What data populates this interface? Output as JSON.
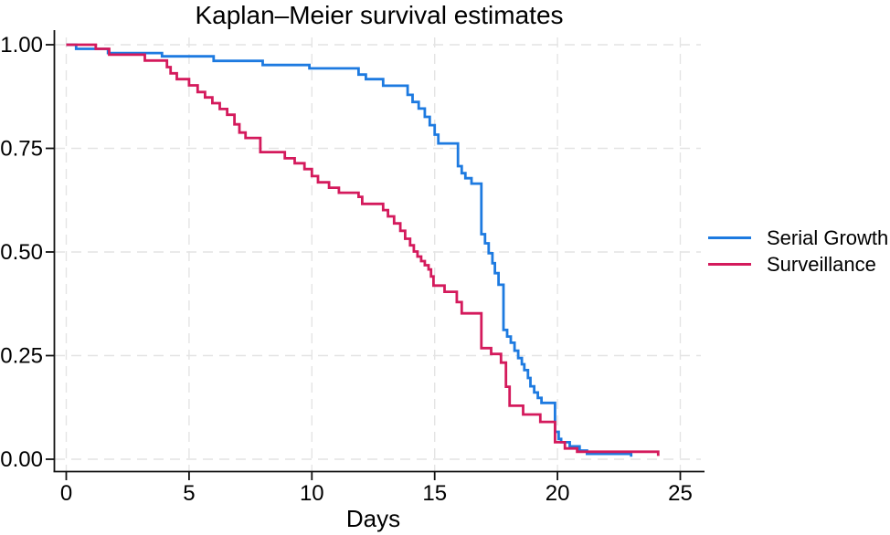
{
  "page": {
    "background": "#ffffff"
  },
  "chart_data": {
    "type": "line",
    "step": true,
    "title": "Kaplan–Meier survival estimates",
    "xlabel": "Days",
    "ylabel": "",
    "xlim": [
      0,
      25
    ],
    "ylim": [
      0,
      1
    ],
    "xticks": [
      0,
      5,
      10,
      15,
      20,
      25
    ],
    "yticks": [
      0,
      0.25,
      0.5,
      0.75,
      1
    ],
    "ytick_labels": [
      "0.00",
      "0.25",
      "0.50",
      "0.75",
      "1.00"
    ],
    "grid": "both-dashed",
    "gridline_color": "#e4e4e4",
    "axis_color": "#111111",
    "legend_position": "right-outside-middle",
    "series": [
      {
        "name": "Serial Growth",
        "color": "#1d7ae0",
        "points": [
          [
            0,
            1.0
          ],
          [
            0.4,
            0.99
          ],
          [
            1.7,
            0.98
          ],
          [
            3.9,
            0.972
          ],
          [
            6.0,
            0.961
          ],
          [
            8.0,
            0.951
          ],
          [
            9.9,
            0.943
          ],
          [
            11.9,
            0.928
          ],
          [
            12.2,
            0.917
          ],
          [
            12.9,
            0.901
          ],
          [
            13.9,
            0.879
          ],
          [
            14.1,
            0.862
          ],
          [
            14.35,
            0.846
          ],
          [
            14.6,
            0.826
          ],
          [
            14.8,
            0.806
          ],
          [
            15.0,
            0.783
          ],
          [
            15.15,
            0.762
          ],
          [
            15.95,
            0.707
          ],
          [
            16.1,
            0.69
          ],
          [
            16.25,
            0.678
          ],
          [
            16.5,
            0.665
          ],
          [
            16.9,
            0.543
          ],
          [
            17.05,
            0.521
          ],
          [
            17.2,
            0.497
          ],
          [
            17.35,
            0.473
          ],
          [
            17.45,
            0.449
          ],
          [
            17.6,
            0.421
          ],
          [
            17.8,
            0.312
          ],
          [
            17.95,
            0.296
          ],
          [
            18.1,
            0.281
          ],
          [
            18.25,
            0.262
          ],
          [
            18.4,
            0.244
          ],
          [
            18.55,
            0.229
          ],
          [
            18.65,
            0.215
          ],
          [
            18.8,
            0.196
          ],
          [
            18.9,
            0.176
          ],
          [
            19.05,
            0.161
          ],
          [
            19.2,
            0.148
          ],
          [
            19.35,
            0.136
          ],
          [
            19.9,
            0.066
          ],
          [
            20.05,
            0.049
          ],
          [
            20.15,
            0.041
          ],
          [
            20.5,
            0.031
          ],
          [
            20.9,
            0.021
          ],
          [
            21.2,
            0.013
          ],
          [
            23.0,
            0.006
          ]
        ]
      },
      {
        "name": "Surveillance",
        "color": "#d41a5c",
        "points": [
          [
            0,
            1.0
          ],
          [
            1.2,
            0.99
          ],
          [
            1.75,
            0.976
          ],
          [
            3.2,
            0.962
          ],
          [
            4.1,
            0.946
          ],
          [
            4.25,
            0.931
          ],
          [
            4.5,
            0.917
          ],
          [
            5.0,
            0.902
          ],
          [
            5.35,
            0.886
          ],
          [
            5.65,
            0.873
          ],
          [
            5.95,
            0.859
          ],
          [
            6.25,
            0.845
          ],
          [
            6.55,
            0.831
          ],
          [
            6.85,
            0.808
          ],
          [
            7.05,
            0.788
          ],
          [
            7.3,
            0.775
          ],
          [
            7.9,
            0.741
          ],
          [
            8.9,
            0.726
          ],
          [
            9.3,
            0.714
          ],
          [
            9.7,
            0.7
          ],
          [
            10.0,
            0.683
          ],
          [
            10.25,
            0.668
          ],
          [
            10.7,
            0.655
          ],
          [
            11.1,
            0.643
          ],
          [
            11.9,
            0.633
          ],
          [
            12.05,
            0.616
          ],
          [
            12.9,
            0.601
          ],
          [
            13.1,
            0.586
          ],
          [
            13.35,
            0.569
          ],
          [
            13.6,
            0.551
          ],
          [
            13.8,
            0.532
          ],
          [
            14.0,
            0.516
          ],
          [
            14.15,
            0.501
          ],
          [
            14.3,
            0.489
          ],
          [
            14.45,
            0.478
          ],
          [
            14.6,
            0.468
          ],
          [
            14.75,
            0.458
          ],
          [
            14.85,
            0.441
          ],
          [
            14.95,
            0.419
          ],
          [
            15.4,
            0.404
          ],
          [
            15.9,
            0.379
          ],
          [
            16.1,
            0.352
          ],
          [
            16.9,
            0.268
          ],
          [
            17.3,
            0.254
          ],
          [
            17.7,
            0.233
          ],
          [
            17.9,
            0.175
          ],
          [
            18.05,
            0.129
          ],
          [
            18.6,
            0.108
          ],
          [
            19.3,
            0.09
          ],
          [
            19.9,
            0.041
          ],
          [
            20.3,
            0.026
          ],
          [
            20.8,
            0.018
          ],
          [
            24.1,
            0.008
          ]
        ]
      }
    ]
  }
}
